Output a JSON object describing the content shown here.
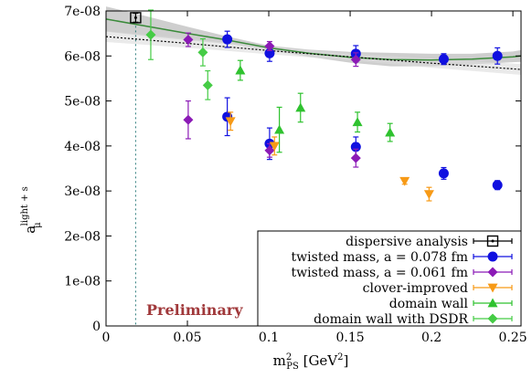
{
  "chart_data": {
    "type": "scatter",
    "xlabel": "m²_PS [GeV²]",
    "ylabel": "a_μ^light+s",
    "xlim": [
      0,
      0.255
    ],
    "ylim": [
      0,
      7e-08
    ],
    "x_ticks": [
      0,
      0.05,
      0.1,
      0.15,
      0.2,
      0.25
    ],
    "x_tick_labels": [
      "0",
      "0.05",
      "0.1",
      "0.15",
      "0.2",
      "0.25"
    ],
    "y_ticks": [
      0,
      1e-08,
      2e-08,
      3e-08,
      4e-08,
      5e-08,
      6e-08,
      7e-08
    ],
    "y_tick_labels": [
      "0",
      "1e-08",
      "2e-08",
      "3e-08",
      "4e-08",
      "5e-08",
      "6e-08",
      "7e-08"
    ],
    "grid": false,
    "legend_position": "bottom-right",
    "annotation": "Preliminary",
    "physical_point_x": 0.0182,
    "series": [
      {
        "name": "dispersive analysis",
        "marker": "square-open",
        "color": "#000000",
        "points": [
          {
            "x": 0.0182,
            "y": 6.85e-08,
            "err": 1e-09
          }
        ]
      },
      {
        "name": "twisted mass, a = 0.078 fm",
        "marker": "circle",
        "color": "#1010e0",
        "points": [
          {
            "x": 0.0745,
            "y": 6.37e-08,
            "err": 1.8e-09
          },
          {
            "x": 0.1005,
            "y": 6.06e-08,
            "err": 1.8e-09
          },
          {
            "x": 0.1535,
            "y": 6.05e-08,
            "err": 1.8e-09
          },
          {
            "x": 0.2075,
            "y": 5.93e-08,
            "err": 1.2e-09
          },
          {
            "x": 0.2405,
            "y": 6e-08,
            "err": 1.8e-09
          },
          {
            "x": 0.0745,
            "y": 4.65e-08,
            "err": 4.2e-09
          },
          {
            "x": 0.1005,
            "y": 4.05e-08,
            "err": 3.5e-09
          },
          {
            "x": 0.1535,
            "y": 3.98e-08,
            "err": 2.2e-09
          },
          {
            "x": 0.2075,
            "y": 3.39e-08,
            "err": 1.3e-09
          },
          {
            "x": 0.2405,
            "y": 3.13e-08,
            "err": 1e-09
          }
        ]
      },
      {
        "name": "twisted mass, a = 0.061 fm",
        "marker": "diamond",
        "color": "#8b1ab6",
        "points": [
          {
            "x": 0.0505,
            "y": 6.36e-08,
            "err": 1.5e-09
          },
          {
            "x": 0.1005,
            "y": 6.22e-08,
            "err": 1e-09
          },
          {
            "x": 0.1535,
            "y": 5.92e-08,
            "err": 1.5e-09
          },
          {
            "x": 0.0505,
            "y": 4.58e-08,
            "err": 4.2e-09
          },
          {
            "x": 0.1005,
            "y": 3.9e-08,
            "err": 1.5e-09
          },
          {
            "x": 0.1535,
            "y": 3.73e-08,
            "err": 2e-09
          }
        ]
      },
      {
        "name": "clover-improved",
        "marker": "triangle-down",
        "color": "#f79a16",
        "points": [
          {
            "x": 0.0765,
            "y": 4.55e-08,
            "err": 2e-09
          },
          {
            "x": 0.1035,
            "y": 4e-08,
            "err": 2e-09
          },
          {
            "x": 0.1835,
            "y": 3.22e-08,
            "err": 7e-10
          },
          {
            "x": 0.1985,
            "y": 2.93e-08,
            "err": 1.5e-09
          }
        ]
      },
      {
        "name": "domain wall",
        "marker": "triangle-up",
        "color": "#2fc22f",
        "points": [
          {
            "x": 0.0825,
            "y": 5.68e-08,
            "err": 2.2e-09
          },
          {
            "x": 0.1065,
            "y": 4.36e-08,
            "err": 5e-09
          },
          {
            "x": 0.1195,
            "y": 4.85e-08,
            "err": 3.2e-09
          },
          {
            "x": 0.1545,
            "y": 4.53e-08,
            "err": 2.2e-09
          },
          {
            "x": 0.1745,
            "y": 4.3e-08,
            "err": 2e-09
          }
        ]
      },
      {
        "name": "domain wall with DSDR",
        "marker": "diamond",
        "color": "#45cc45",
        "points": [
          {
            "x": 0.0275,
            "y": 6.47e-08,
            "err": 5.5e-09
          },
          {
            "x": 0.0595,
            "y": 6.08e-08,
            "err": 3e-09
          },
          {
            "x": 0.0625,
            "y": 5.35e-08,
            "err": 3.2e-09
          }
        ]
      }
    ],
    "fit_curves": [
      {
        "style": "solid",
        "color": "#3a8a3a",
        "band_color": "#bdbdbd",
        "x": [
          0,
          0.025,
          0.05,
          0.075,
          0.1,
          0.125,
          0.15,
          0.175,
          0.2,
          0.225,
          0.25,
          0.255
        ],
        "y": [
          6.82e-08,
          6.66e-08,
          6.5e-08,
          6.35e-08,
          6.18e-08,
          6.06e-08,
          5.97e-08,
          5.92e-08,
          5.91e-08,
          5.93e-08,
          5.98e-08,
          6e-08
        ],
        "err": [
          2.8e-09,
          2.2e-09,
          1.5e-09,
          8e-10,
          5e-10,
          8e-10,
          1.2e-09,
          1.5e-09,
          1.4e-09,
          1.2e-09,
          1.2e-09,
          1.3e-09
        ]
      },
      {
        "style": "dotted",
        "color": "#000000",
        "band_color": "#dcdcdc",
        "x": [
          0,
          0.05,
          0.1,
          0.15,
          0.2,
          0.255
        ],
        "y": [
          6.43e-08,
          6.28e-08,
          6.12e-08,
          5.98e-08,
          5.84e-08,
          5.7e-08
        ],
        "err": [
          1.2e-09,
          1e-09,
          8e-10,
          8e-10,
          1e-09,
          1.2e-09
        ]
      }
    ]
  }
}
